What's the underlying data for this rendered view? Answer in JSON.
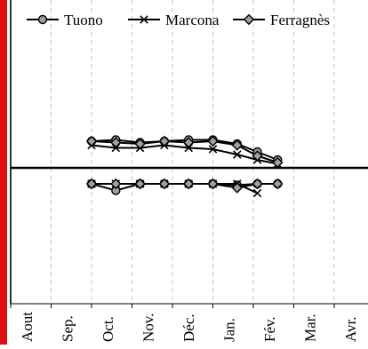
{
  "chart_data": {
    "type": "line",
    "title": "",
    "xlabel": "",
    "ylabel": "",
    "categories": [
      "Aout",
      "Sep.",
      "Oct.",
      "Nov.",
      "Déc.",
      "Jan.",
      "Fév.",
      "Mar.",
      "Avr."
    ],
    "legend_position": "top",
    "grid": "vertical dashed",
    "y_scale": "unlabeled",
    "ylim": [
      -6,
      6
    ],
    "reference_line": 0,
    "series": [
      {
        "name": "Tuono",
        "marker": "circle",
        "color": "#000000",
        "fill": "#a0a0a0",
        "upper": {
          "x": [
            2.0,
            2.6,
            3.2,
            3.8,
            4.4,
            5.0,
            5.6,
            6.1,
            6.6
          ],
          "y": [
            1.0,
            1.05,
            0.95,
            1.0,
            1.05,
            1.05,
            0.9,
            0.6,
            0.3
          ]
        },
        "lower": {
          "x": [
            2.0,
            2.6,
            3.2,
            3.8,
            4.4,
            5.0,
            5.6,
            6.1,
            6.6
          ],
          "y": [
            -0.6,
            -0.85,
            -0.6,
            -0.6,
            -0.6,
            -0.6,
            -0.65,
            -0.6,
            -0.6
          ]
        }
      },
      {
        "name": "Marcona",
        "marker": "x",
        "color": "#000000",
        "upper": {
          "x": [
            2.0,
            2.6,
            3.2,
            3.8,
            4.4,
            5.0,
            5.6,
            6.1,
            6.6
          ],
          "y": [
            0.85,
            0.75,
            0.75,
            0.85,
            0.75,
            0.7,
            0.5,
            0.3,
            0.15
          ]
        },
        "lower": {
          "x": [
            2.0,
            2.6,
            3.2,
            3.8,
            4.4,
            5.0,
            5.6,
            6.1
          ],
          "y": [
            -0.6,
            -0.6,
            -0.6,
            -0.6,
            -0.6,
            -0.6,
            -0.6,
            -0.95
          ]
        }
      },
      {
        "name": "Ferragnès",
        "marker": "diamond",
        "color": "#000000",
        "fill": "#a0a0a0",
        "upper": {
          "x": [
            2.0,
            2.6,
            3.2,
            3.8,
            4.4,
            5.0,
            5.6,
            6.1,
            6.6
          ],
          "y": [
            1.0,
            0.95,
            0.9,
            1.0,
            0.95,
            1.0,
            0.85,
            0.45,
            0.2
          ]
        },
        "lower": {
          "x": [
            2.0,
            2.6,
            3.2,
            3.8,
            4.4,
            5.0,
            5.6,
            6.1,
            6.6
          ],
          "y": [
            -0.6,
            -0.6,
            -0.6,
            -0.6,
            -0.6,
            -0.6,
            -0.75,
            -0.6,
            -0.6
          ]
        }
      }
    ]
  }
}
